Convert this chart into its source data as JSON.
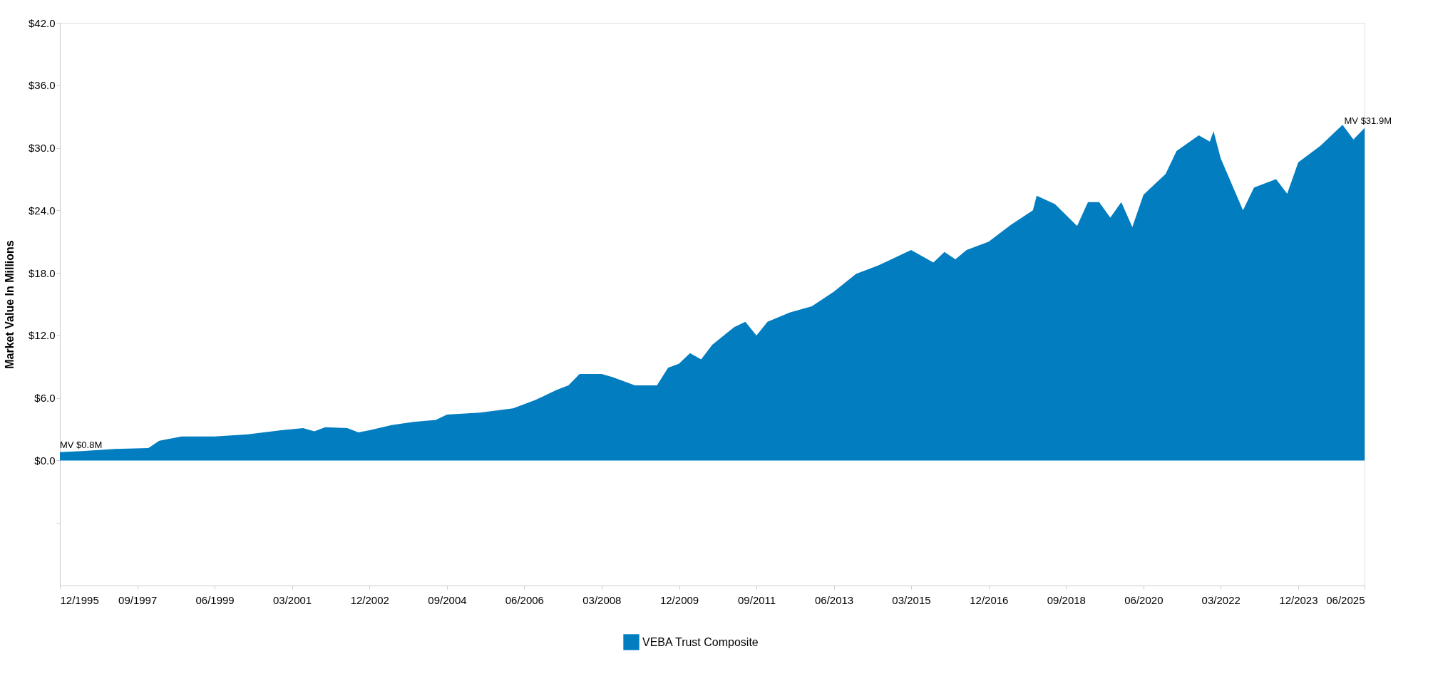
{
  "chart_data": {
    "type": "area",
    "ylabel": "Market Value In Millions",
    "x": [
      "1995-12",
      "1996-06",
      "1997-03",
      "1997-12",
      "1998-03",
      "1998-09",
      "1999-06",
      "2000-03",
      "2000-12",
      "2001-06",
      "2001-09",
      "2001-12",
      "2002-06",
      "2002-09",
      "2002-12",
      "2003-06",
      "2003-12",
      "2004-06",
      "2004-09",
      "2005-06",
      "2006-03",
      "2006-09",
      "2007-03",
      "2007-06",
      "2007-09",
      "2008-03",
      "2008-06",
      "2008-09",
      "2008-12",
      "2009-06",
      "2009-09",
      "2009-12",
      "2010-03",
      "2010-06",
      "2010-09",
      "2011-03",
      "2011-06",
      "2011-09",
      "2011-12",
      "2012-06",
      "2012-12",
      "2013-06",
      "2013-12",
      "2014-06",
      "2014-09",
      "2015-03",
      "2015-09",
      "2015-12",
      "2016-03",
      "2016-06",
      "2016-12",
      "2017-06",
      "2017-12",
      "2018-01",
      "2018-06",
      "2018-12",
      "2019-03",
      "2019-06",
      "2019-09",
      "2019-12",
      "2020-03",
      "2020-06",
      "2020-12",
      "2021-03",
      "2021-09",
      "2021-12",
      "2022-01",
      "2022-03",
      "2022-06",
      "2022-09",
      "2022-12",
      "2023-06",
      "2023-09",
      "2023-12",
      "2024-06",
      "2024-12",
      "2025-03",
      "2025-06"
    ],
    "series": [
      {
        "name": "VEBA Trust Composite",
        "color": "#027dc0",
        "values": [
          0.8,
          0.9,
          1.1,
          1.2,
          1.9,
          2.3,
          2.3,
          2.5,
          2.9,
          3.1,
          2.8,
          3.2,
          3.1,
          2.7,
          2.9,
          3.4,
          3.7,
          3.9,
          4.4,
          4.6,
          5.0,
          5.8,
          6.8,
          7.2,
          8.3,
          8.3,
          8.0,
          7.6,
          7.2,
          7.2,
          8.9,
          9.3,
          10.3,
          9.7,
          11.1,
          12.8,
          13.3,
          12.0,
          13.3,
          14.2,
          14.8,
          16.2,
          17.9,
          18.7,
          19.2,
          20.2,
          19.0,
          20.0,
          19.3,
          20.2,
          21.0,
          22.6,
          24.0,
          25.4,
          24.6,
          22.5,
          24.8,
          24.8,
          23.3,
          24.8,
          22.4,
          25.5,
          27.5,
          29.7,
          31.2,
          30.6,
          31.6,
          29.0,
          26.5,
          24.0,
          26.2,
          27.0,
          25.6,
          28.6,
          30.2,
          32.2,
          30.8,
          31.9
        ]
      }
    ],
    "xlim": [
      "1995-12",
      "2025-06"
    ],
    "xticks": [
      {
        "value": "1995-12",
        "label": "12/1995"
      },
      {
        "value": "1997-09",
        "label": "09/1997"
      },
      {
        "value": "1999-06",
        "label": "06/1999"
      },
      {
        "value": "2001-03",
        "label": "03/2001"
      },
      {
        "value": "2002-12",
        "label": "12/2002"
      },
      {
        "value": "2004-09",
        "label": "09/2004"
      },
      {
        "value": "2006-06",
        "label": "06/2006"
      },
      {
        "value": "2008-03",
        "label": "03/2008"
      },
      {
        "value": "2009-12",
        "label": "12/2009"
      },
      {
        "value": "2011-09",
        "label": "09/2011"
      },
      {
        "value": "2013-06",
        "label": "06/2013"
      },
      {
        "value": "2015-03",
        "label": "03/2015"
      },
      {
        "value": "2016-12",
        "label": "12/2016"
      },
      {
        "value": "2018-09",
        "label": "09/2018"
      },
      {
        "value": "2020-06",
        "label": "06/2020"
      },
      {
        "value": "2022-03",
        "label": "03/2022"
      },
      {
        "value": "2023-12",
        "label": "12/2023"
      },
      {
        "value": "2025-06",
        "label": "06/2025"
      }
    ],
    "ylim": [
      -12,
      42
    ],
    "yticks": [
      {
        "value": -6,
        "label": null
      },
      {
        "value": 0,
        "label": "$0.0"
      },
      {
        "value": 6,
        "label": "$6.0"
      },
      {
        "value": 12,
        "label": "$12.0"
      },
      {
        "value": 18,
        "label": "$18.0"
      },
      {
        "value": 24,
        "label": "$24.0"
      },
      {
        "value": 30,
        "label": "$30.0"
      },
      {
        "value": 36,
        "label": "$36.0"
      },
      {
        "value": 42,
        "label": "$42.0"
      }
    ],
    "annotations": [
      {
        "text": "MV $0.8M",
        "x": "1995-12",
        "y": 0.8
      },
      {
        "text": "MV $31.9M",
        "x": "2025-06",
        "y": 31.9
      }
    ],
    "grid": false,
    "legend": "bottom"
  }
}
